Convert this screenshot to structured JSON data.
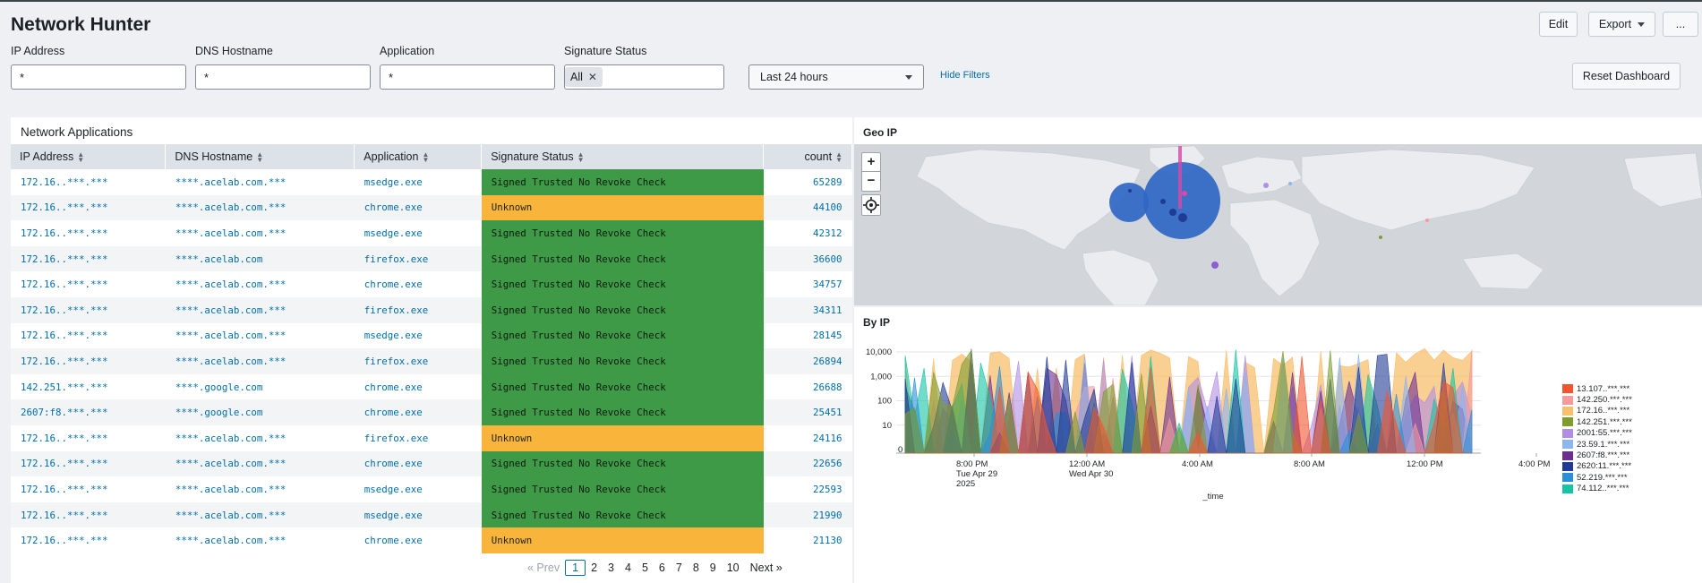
{
  "header": {
    "title": "Network Hunter",
    "edit_label": "Edit",
    "export_label": "Export",
    "more_label": "..."
  },
  "filters": {
    "ip_label": "IP Address",
    "ip_value": "*",
    "dns_label": "DNS Hostname",
    "dns_value": "*",
    "app_label": "Application",
    "app_value": "*",
    "sig_label": "Signature Status",
    "sig_chip": "All",
    "time_value": "Last 24 hours",
    "hide_filters": "Hide Filters",
    "reset_label": "Reset Dashboard"
  },
  "network_table": {
    "title": "Network Applications",
    "columns": [
      "IP Address",
      "DNS Hostname",
      "Application",
      "Signature Status",
      "count"
    ],
    "rows": [
      {
        "ip": "172.16..***.***",
        "dns": "****.acelab.com.***",
        "app": "msedge.exe",
        "sig": "Signed Trusted No Revoke Check",
        "status": "green",
        "count": "65289"
      },
      {
        "ip": "172.16..***.***",
        "dns": "****.acelab.com.***",
        "app": "chrome.exe",
        "sig": "Unknown",
        "status": "amber",
        "count": "44100"
      },
      {
        "ip": "172.16..***.***",
        "dns": "****.acelab.com.***",
        "app": "msedge.exe",
        "sig": "Signed Trusted No Revoke Check",
        "status": "green",
        "count": "42312"
      },
      {
        "ip": "172.16..***.***",
        "dns": "****.acelab.com",
        "app": "firefox.exe",
        "sig": "Signed Trusted No Revoke Check",
        "status": "green",
        "count": "36600"
      },
      {
        "ip": "172.16..***.***",
        "dns": "****.acelab.com.***",
        "app": "chrome.exe",
        "sig": "Signed Trusted No Revoke Check",
        "status": "green",
        "count": "34757"
      },
      {
        "ip": "172.16..***.***",
        "dns": "****.acelab.com.***",
        "app": "firefox.exe",
        "sig": "Signed Trusted No Revoke Check",
        "status": "green",
        "count": "34311"
      },
      {
        "ip": "172.16..***.***",
        "dns": "****.acelab.com.***",
        "app": "msedge.exe",
        "sig": "Signed Trusted No Revoke Check",
        "status": "green",
        "count": "28145"
      },
      {
        "ip": "172.16..***.***",
        "dns": "****.acelab.com.***",
        "app": "firefox.exe",
        "sig": "Signed Trusted No Revoke Check",
        "status": "green",
        "count": "26894"
      },
      {
        "ip": "142.251.***.***",
        "dns": "****.google.com",
        "app": "chrome.exe",
        "sig": "Signed Trusted No Revoke Check",
        "status": "green",
        "count": "26688"
      },
      {
        "ip": "2607:f8.***.***",
        "dns": "****.google.com",
        "app": "chrome.exe",
        "sig": "Signed Trusted No Revoke Check",
        "status": "green",
        "count": "25451"
      },
      {
        "ip": "172.16..***.***",
        "dns": "****.acelab.com.***",
        "app": "firefox.exe",
        "sig": "Unknown",
        "status": "amber",
        "count": "24116"
      },
      {
        "ip": "172.16..***.***",
        "dns": "****.acelab.com.***",
        "app": "chrome.exe",
        "sig": "Signed Trusted No Revoke Check",
        "status": "green",
        "count": "22656"
      },
      {
        "ip": "172.16..***.***",
        "dns": "****.acelab.com.***",
        "app": "msedge.exe",
        "sig": "Signed Trusted No Revoke Check",
        "status": "green",
        "count": "22593"
      },
      {
        "ip": "172.16..***.***",
        "dns": "****.acelab.com.***",
        "app": "msedge.exe",
        "sig": "Signed Trusted No Revoke Check",
        "status": "green",
        "count": "21990"
      },
      {
        "ip": "172.16..***.***",
        "dns": "****.acelab.com.***",
        "app": "chrome.exe",
        "sig": "Unknown",
        "status": "amber",
        "count": "21130"
      }
    ],
    "status_colors": {
      "green": "#3e9a47",
      "amber": "#f9b53b"
    }
  },
  "pagination": {
    "prev": "« Prev",
    "pages": [
      "1",
      "2",
      "3",
      "4",
      "5",
      "6",
      "7",
      "8",
      "9",
      "10"
    ],
    "current": "1",
    "next": "Next »"
  },
  "geo": {
    "title": "Geo IP",
    "zoom_in": "+",
    "zoom_out": "−",
    "locate_icon": "crosshair-icon",
    "bubble_color": "#2f66c4"
  },
  "chart_data": {
    "type": "area",
    "title": "By IP",
    "xlabel": "_time",
    "ylabel": "",
    "yscale": "log",
    "yticks": [
      "0",
      "10",
      "100",
      "1,000",
      "10,000"
    ],
    "xticks": [
      {
        "line1": "8:00 PM",
        "line2": "Tue Apr 29",
        "line3": "2025"
      },
      {
        "line1": "12:00 AM",
        "line2": "Wed Apr 30",
        "line3": ""
      },
      {
        "line1": "4:00 AM",
        "line2": "",
        "line3": ""
      },
      {
        "line1": "8:00 AM",
        "line2": "",
        "line3": ""
      },
      {
        "line1": "12:00 PM",
        "line2": "",
        "line3": ""
      },
      {
        "line1": "4:00 PM",
        "line2": "",
        "line3": ""
      }
    ],
    "legend_position": "right",
    "series": [
      {
        "name": "13.107..***.***",
        "color": "#f2542d"
      },
      {
        "name": "142.250.***.***",
        "color": "#f49ba0"
      },
      {
        "name": "172.16..***.***",
        "color": "#f8bf6e"
      },
      {
        "name": "142.251.***.***",
        "color": "#7f9c2f"
      },
      {
        "name": "2001:55.***.***",
        "color": "#b18ee5"
      },
      {
        "name": "23.59.1.***.***",
        "color": "#8bb6f0"
      },
      {
        "name": "2607:f8.***.***",
        "color": "#6b2f8f"
      },
      {
        "name": "2620:11.***.***",
        "color": "#1f3b94"
      },
      {
        "name": "52.219.***.***",
        "color": "#2a8fd9"
      },
      {
        "name": "74.112..***.***",
        "color": "#16c3a5"
      }
    ]
  }
}
